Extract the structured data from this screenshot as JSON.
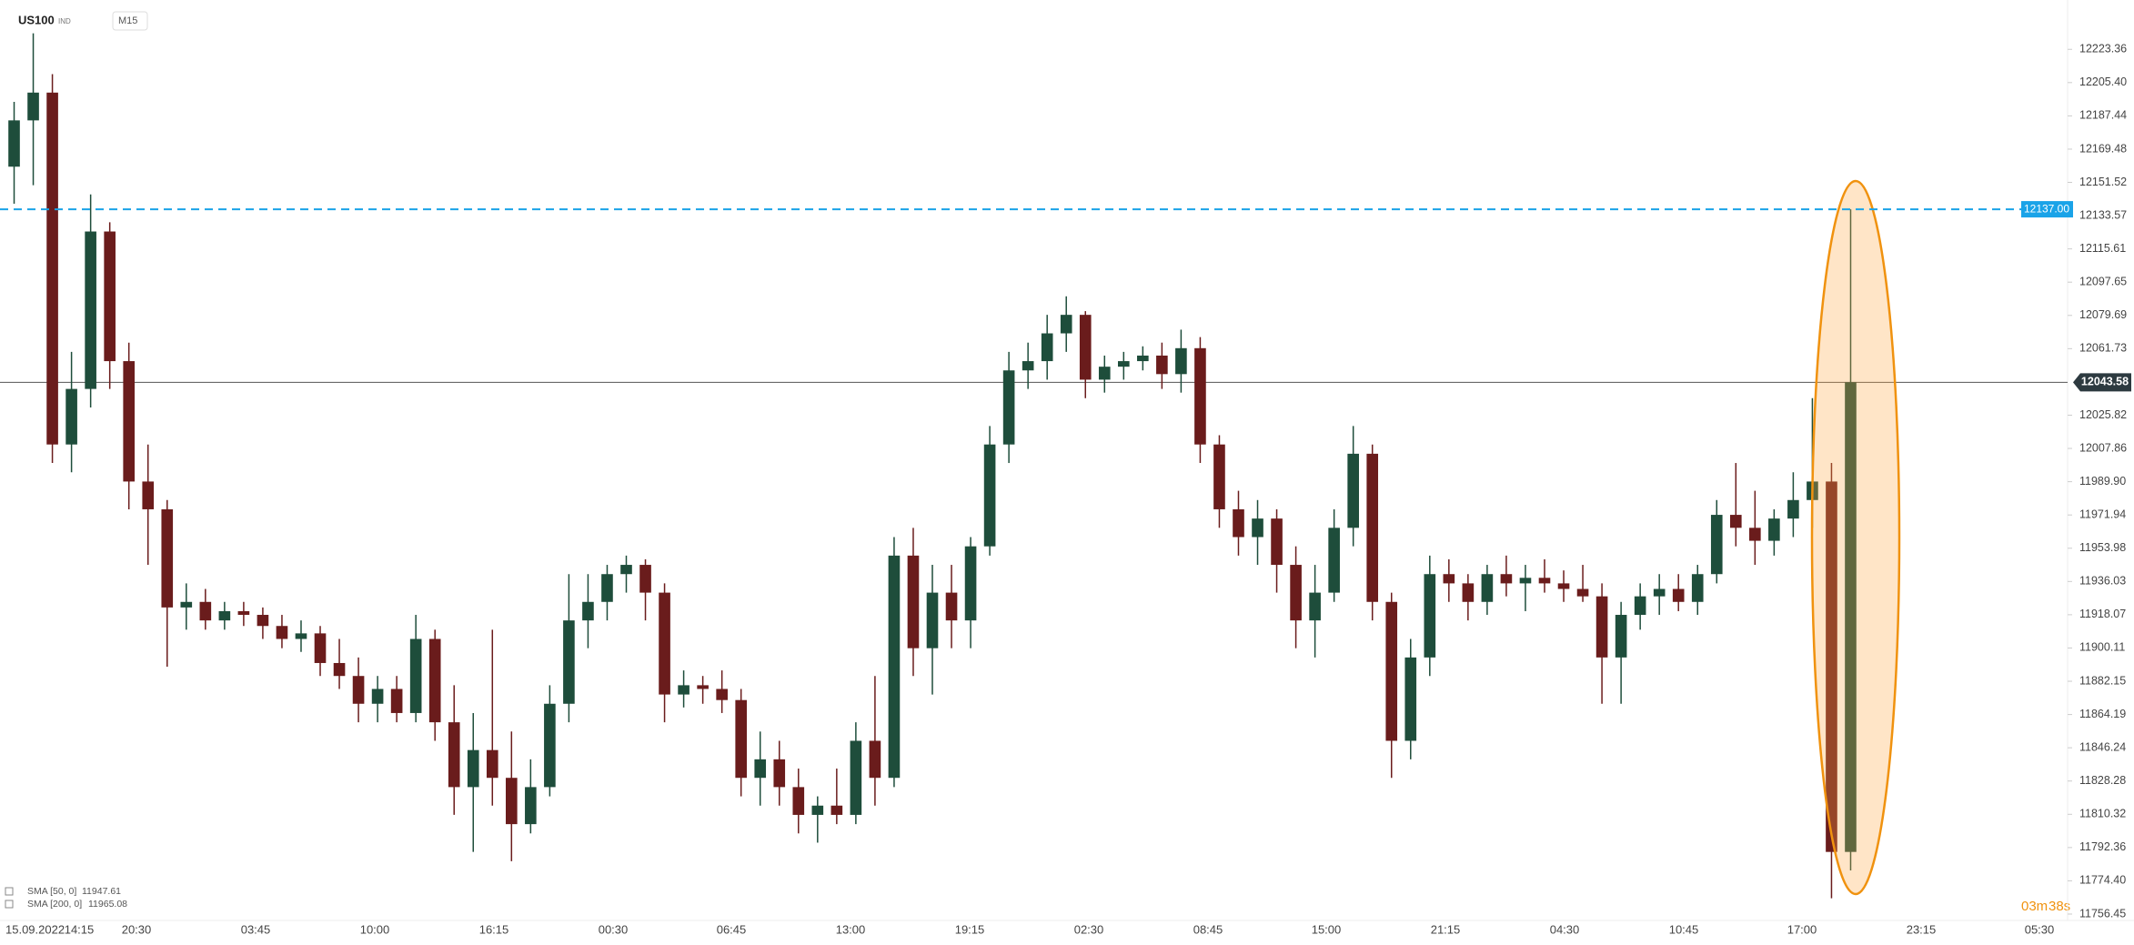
{
  "chart_data": {
    "type": "candlestick",
    "symbol": "US100",
    "market": "IND",
    "interval": "M15",
    "up_color": "#1e4d3b",
    "down_color": "#6a1c1c",
    "open": [
      12160,
      12185,
      12200,
      12010,
      12040,
      12125,
      12055,
      11990,
      11975,
      11922,
      11925,
      11915,
      11920,
      11918,
      11912,
      11905,
      11908,
      11892,
      11885,
      11870,
      11878,
      11865,
      11905,
      11860,
      11825,
      11845,
      11830,
      11805,
      11825,
      11870,
      11915,
      11925,
      11940,
      11945,
      11930,
      11875,
      11880,
      11878,
      11872,
      11830,
      11840,
      11825,
      11810,
      11815,
      11810,
      11850,
      11830,
      11950,
      11900,
      11930,
      11915,
      11955,
      12010,
      12050,
      12055,
      12070,
      12080,
      12045,
      12052,
      12055,
      12058,
      12048,
      12062,
      12010,
      11975,
      11960,
      11970,
      11945,
      11915,
      11930,
      11965,
      12005,
      11925,
      11850,
      11895,
      11940,
      11935,
      11925,
      11940,
      11935,
      11938,
      11935,
      11932,
      11928,
      11895,
      11918,
      11928,
      11932,
      11925,
      11940,
      11972,
      11965,
      11958,
      11970,
      11980,
      11990,
      11790
    ],
    "high": [
      12195,
      12232,
      12210,
      12060,
      12145,
      12130,
      12065,
      12010,
      11980,
      11935,
      11932,
      11925,
      11925,
      11922,
      11918,
      11915,
      11912,
      11905,
      11895,
      11885,
      11885,
      11918,
      11910,
      11880,
      11865,
      11910,
      11855,
      11840,
      11880,
      11940,
      11940,
      11945,
      11950,
      11948,
      11935,
      11888,
      11885,
      11888,
      11878,
      11855,
      11850,
      11835,
      11820,
      11835,
      11860,
      11885,
      11960,
      11965,
      11945,
      11945,
      11960,
      12020,
      12060,
      12065,
      12080,
      12090,
      12082,
      12058,
      12060,
      12063,
      12065,
      12072,
      12068,
      12015,
      11985,
      11980,
      11975,
      11955,
      11945,
      11975,
      12020,
      12010,
      11930,
      11905,
      11950,
      11948,
      11940,
      11945,
      11950,
      11945,
      11948,
      11942,
      11945,
      11935,
      11925,
      11935,
      11940,
      11940,
      11945,
      11980,
      12000,
      11985,
      11975,
      11995,
      12035,
      12000,
      12137
    ],
    "low": [
      12140,
      12150,
      12000,
      11995,
      12030,
      12040,
      11975,
      11945,
      11890,
      11910,
      11910,
      11910,
      11912,
      11905,
      11900,
      11898,
      11885,
      11878,
      11860,
      11860,
      11860,
      11860,
      11850,
      11810,
      11790,
      11815,
      11785,
      11800,
      11820,
      11860,
      11900,
      11915,
      11930,
      11915,
      11860,
      11868,
      11870,
      11865,
      11820,
      11815,
      11815,
      11800,
      11795,
      11805,
      11805,
      11815,
      11825,
      11885,
      11875,
      11900,
      11900,
      11950,
      12000,
      12040,
      12045,
      12060,
      12035,
      12038,
      12045,
      12050,
      12040,
      12038,
      12000,
      11965,
      11950,
      11945,
      11930,
      11900,
      11895,
      11925,
      11955,
      11915,
      11830,
      11840,
      11885,
      11925,
      11915,
      11918,
      11928,
      11920,
      11930,
      11925,
      11925,
      11870,
      11870,
      11910,
      11918,
      11920,
      11918,
      11935,
      11955,
      11945,
      11950,
      11960,
      11965,
      11765,
      11780
    ],
    "close": [
      12185,
      12200,
      12010,
      12040,
      12125,
      12055,
      11990,
      11975,
      11922,
      11925,
      11915,
      11920,
      11918,
      11912,
      11905,
      11908,
      11892,
      11885,
      11870,
      11878,
      11865,
      11905,
      11860,
      11825,
      11845,
      11830,
      11805,
      11825,
      11870,
      11915,
      11925,
      11940,
      11945,
      11930,
      11875,
      11880,
      11878,
      11872,
      11830,
      11840,
      11825,
      11810,
      11815,
      11810,
      11850,
      11830,
      11950,
      11900,
      11930,
      11915,
      11955,
      12010,
      12050,
      12055,
      12070,
      12080,
      12045,
      12052,
      12055,
      12058,
      12048,
      12062,
      12010,
      11975,
      11960,
      11970,
      11945,
      11915,
      11930,
      11965,
      12005,
      11925,
      11850,
      11895,
      11940,
      11935,
      11925,
      11940,
      11935,
      11938,
      11935,
      11932,
      11928,
      11895,
      11918,
      11928,
      11932,
      11925,
      11940,
      11972,
      11965,
      11958,
      11970,
      11980,
      11990,
      11790,
      12043.58
    ],
    "ylim": [
      11753,
      12250
    ],
    "yticks": [
      12223.36,
      {
        "value": 12205.4,
        "label": "12205.40"
      },
      12187.44,
      12169.48,
      12151.52,
      12133.57,
      12115.61,
      12097.65,
      12079.69,
      12061.73,
      12025.82,
      12007.86,
      {
        "value": 11989.9,
        "label": "11989.90"
      },
      11971.94,
      11953.98,
      11936.03,
      11918.07,
      11900.11,
      11882.15,
      11864.19,
      11846.24,
      11828.28,
      11810.32,
      11792.36,
      {
        "value": 11774.4,
        "label": "11774.40"
      },
      11756.45
    ],
    "hline": {
      "value": 12137.0,
      "label": "12137.00",
      "color": "#1aa3e8"
    },
    "current_price": 12043.58,
    "x_labels": [
      "15.09.2022",
      "14:15",
      "20:30",
      "03:45",
      "10:00",
      "16:15",
      "00:30",
      "06:45",
      "13:00",
      "19:15",
      "02:30",
      "08:45",
      "15:00",
      "21:15",
      "04:30",
      "10:45",
      "17:00",
      "23:15",
      "05:30"
    ],
    "indicators": [
      {
        "name": "SMA [50, 0]",
        "value": 11947.61
      },
      {
        "name": "SMA [200, 0]",
        "value": 11965.08
      }
    ],
    "countdown": [
      "03m",
      "38s"
    ]
  }
}
